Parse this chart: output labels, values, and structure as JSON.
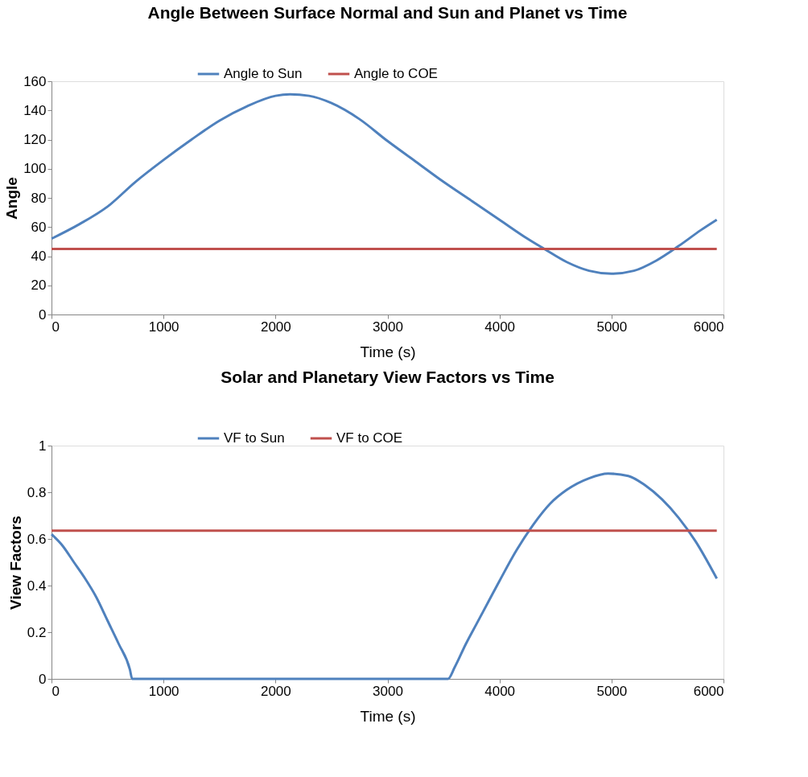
{
  "chart_data": [
    {
      "type": "line",
      "title": "Angle Between Surface Normal and Sun and Planet vs Time",
      "xlabel": "Time (s)",
      "ylabel": "Angle",
      "xlim": [
        0,
        6000
      ],
      "xticks": [
        0,
        1000,
        2000,
        3000,
        4000,
        5000,
        6000
      ],
      "ylim": [
        0,
        160
      ],
      "yticks": [
        0,
        20,
        40,
        60,
        80,
        100,
        120,
        140,
        160
      ],
      "grid": false,
      "legend": "top",
      "marker": "none",
      "line_style": "solid",
      "series": [
        {
          "name": "Angle to Sun",
          "color": "#4f81bd",
          "x": [
            0,
            250,
            500,
            750,
            1000,
            1250,
            1500,
            1750,
            2000,
            2130,
            2300,
            2500,
            2750,
            3000,
            3250,
            3500,
            3750,
            4000,
            4250,
            4400,
            4600,
            4800,
            5000,
            5200,
            5400,
            5600,
            5800,
            5940
          ],
          "values": [
            52,
            62,
            74,
            91,
            106,
            120,
            133,
            143,
            150,
            151,
            150,
            145,
            134,
            119,
            105,
            91,
            78,
            65,
            52,
            45,
            36,
            30,
            28,
            30,
            37,
            47,
            58,
            65
          ]
        },
        {
          "name": "Angle to COE",
          "color": "#c0504d",
          "x": [
            0,
            5940
          ],
          "values": [
            45,
            45
          ]
        }
      ]
    },
    {
      "type": "line",
      "title": "Solar and Planetary View Factors vs Time",
      "xlabel": "Time (s)",
      "ylabel": "View Factors",
      "xlim": [
        0,
        6000
      ],
      "xticks": [
        0,
        1000,
        2000,
        3000,
        4000,
        5000,
        6000
      ],
      "ylim": [
        0,
        1
      ],
      "yticks": [
        0,
        0.2,
        0.4,
        0.6,
        0.8,
        1
      ],
      "grid": false,
      "legend": "top",
      "marker": "none",
      "line_style": "solid",
      "series": [
        {
          "name": "VF to Sun",
          "color": "#4f81bd",
          "x": [
            0,
            100,
            200,
            300,
            400,
            500,
            600,
            700,
            720,
            3540,
            3600,
            3700,
            3800,
            3900,
            4000,
            4150,
            4300,
            4450,
            4600,
            4800,
            4970,
            5150,
            5300,
            5450,
            5600,
            5750,
            5940
          ],
          "values": [
            0.62,
            0.57,
            0.5,
            0.43,
            0.35,
            0.25,
            0.15,
            0.04,
            0,
            0,
            0.05,
            0.15,
            0.24,
            0.33,
            0.42,
            0.55,
            0.66,
            0.75,
            0.81,
            0.86,
            0.88,
            0.87,
            0.83,
            0.77,
            0.69,
            0.59,
            0.43
          ]
        },
        {
          "name": "VF to COE",
          "color": "#c0504d",
          "x": [
            0,
            5940
          ],
          "values": [
            0.635,
            0.635
          ]
        }
      ]
    }
  ]
}
